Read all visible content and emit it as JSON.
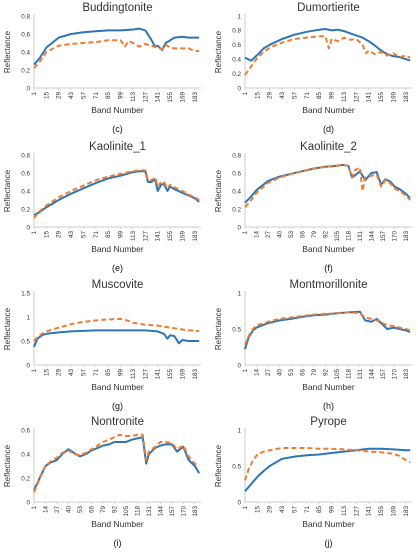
{
  "style": {
    "measured_color": "#2e75b6",
    "reference_color": "#ed7d31",
    "reference_dash": true
  },
  "chart_data": [
    {
      "type": "line",
      "title": "Buddingtonite",
      "caption": "(c)",
      "xlabel": "Band Number",
      "ylabel": "Reflectance",
      "xlim": [
        1,
        190
      ],
      "ylim": [
        0,
        0.8
      ],
      "yticks": [
        0,
        0.2,
        0.4,
        0.6,
        0.8
      ],
      "xticks": [
        1,
        15,
        29,
        43,
        57,
        71,
        85,
        99,
        113,
        127,
        141,
        155,
        169,
        183
      ],
      "series": [
        {
          "role": "measured",
          "x": [
            1,
            8,
            15,
            29,
            43,
            57,
            71,
            85,
            99,
            113,
            120,
            127,
            133,
            138,
            141,
            146,
            150,
            155,
            160,
            169,
            176,
            183,
            188
          ],
          "y": [
            0.26,
            0.34,
            0.45,
            0.56,
            0.6,
            0.62,
            0.63,
            0.64,
            0.64,
            0.65,
            0.66,
            0.64,
            0.55,
            0.46,
            0.47,
            0.42,
            0.5,
            0.53,
            0.56,
            0.57,
            0.56,
            0.56,
            0.56
          ]
        },
        {
          "role": "reference",
          "x": [
            1,
            8,
            15,
            29,
            43,
            57,
            71,
            85,
            99,
            104,
            108,
            113,
            120,
            127,
            133,
            141,
            146,
            150,
            155,
            160,
            169,
            176,
            183,
            188
          ],
          "y": [
            0.22,
            0.3,
            0.4,
            0.47,
            0.49,
            0.5,
            0.51,
            0.53,
            0.53,
            0.46,
            0.52,
            0.5,
            0.46,
            0.49,
            0.47,
            0.45,
            0.43,
            0.48,
            0.45,
            0.44,
            0.44,
            0.44,
            0.41,
            0.41
          ]
        }
      ]
    },
    {
      "type": "line",
      "title": "Dumortierite",
      "caption": "(d)",
      "xlabel": "Band Number",
      "ylabel": "Reflectance",
      "xlim": [
        1,
        190
      ],
      "ylim": [
        0,
        1
      ],
      "yticks": [
        0,
        0.2,
        0.4,
        0.6,
        0.8,
        1
      ],
      "xticks": [
        1,
        15,
        29,
        43,
        57,
        71,
        85,
        99,
        113,
        127,
        141,
        155,
        169,
        183
      ],
      "series": [
        {
          "role": "measured",
          "x": [
            1,
            8,
            15,
            22,
            29,
            43,
            57,
            71,
            85,
            92,
            99,
            106,
            113,
            120,
            127,
            134,
            141,
            148,
            155,
            162,
            169,
            176,
            183,
            188
          ],
          "y": [
            0.42,
            0.38,
            0.46,
            0.55,
            0.6,
            0.68,
            0.74,
            0.78,
            0.81,
            0.82,
            0.8,
            0.81,
            0.79,
            0.76,
            0.73,
            0.7,
            0.65,
            0.59,
            0.52,
            0.47,
            0.44,
            0.43,
            0.4,
            0.38
          ]
        },
        {
          "role": "reference",
          "x": [
            1,
            8,
            15,
            22,
            29,
            43,
            57,
            71,
            85,
            92,
            96,
            99,
            106,
            113,
            120,
            127,
            134,
            138,
            141,
            148,
            155,
            162,
            169,
            176,
            183,
            188
          ],
          "y": [
            0.18,
            0.3,
            0.42,
            0.5,
            0.56,
            0.63,
            0.68,
            0.7,
            0.72,
            0.72,
            0.55,
            0.68,
            0.65,
            0.7,
            0.67,
            0.68,
            0.6,
            0.48,
            0.52,
            0.47,
            0.5,
            0.45,
            0.48,
            0.43,
            0.45,
            0.42
          ]
        }
      ]
    },
    {
      "type": "line",
      "title": "Kaolinite_1",
      "caption": "(e)",
      "xlabel": "Band Number",
      "ylabel": "Reflectance",
      "xlim": [
        1,
        190
      ],
      "ylim": [
        0,
        0.8
      ],
      "yticks": [
        0,
        0.2,
        0.4,
        0.6,
        0.8
      ],
      "xticks": [
        1,
        15,
        29,
        43,
        57,
        71,
        85,
        99,
        113,
        127,
        141,
        155,
        169,
        183
      ],
      "series": [
        {
          "role": "measured",
          "x": [
            1,
            8,
            15,
            29,
            43,
            57,
            71,
            85,
            99,
            113,
            120,
            127,
            130,
            134,
            138,
            141,
            145,
            148,
            152,
            155,
            160,
            169,
            176,
            183,
            188
          ],
          "y": [
            0.13,
            0.17,
            0.22,
            0.3,
            0.37,
            0.43,
            0.49,
            0.54,
            0.57,
            0.61,
            0.62,
            0.62,
            0.5,
            0.5,
            0.53,
            0.4,
            0.47,
            0.48,
            0.4,
            0.45,
            0.42,
            0.38,
            0.35,
            0.32,
            0.28
          ]
        },
        {
          "role": "reference",
          "x": [
            1,
            8,
            15,
            29,
            43,
            57,
            71,
            85,
            99,
            113,
            120,
            127,
            130,
            134,
            138,
            141,
            145,
            148,
            152,
            155,
            160,
            169,
            176,
            183,
            188
          ],
          "y": [
            0.1,
            0.18,
            0.24,
            0.33,
            0.4,
            0.46,
            0.52,
            0.56,
            0.59,
            0.62,
            0.63,
            0.63,
            0.52,
            0.52,
            0.55,
            0.45,
            0.5,
            0.5,
            0.43,
            0.47,
            0.44,
            0.4,
            0.36,
            0.33,
            0.3
          ]
        }
      ]
    },
    {
      "type": "line",
      "title": "Kaolinite_2",
      "caption": "(f)",
      "xlabel": "Band Number",
      "ylabel": "Reflectance",
      "xlim": [
        1,
        190
      ],
      "ylim": [
        0,
        0.8
      ],
      "yticks": [
        0,
        0.2,
        0.4,
        0.6,
        0.8
      ],
      "xticks": [
        1,
        14,
        27,
        40,
        53,
        66,
        79,
        92,
        105,
        118,
        131,
        144,
        157,
        170,
        183
      ],
      "series": [
        {
          "role": "measured",
          "x": [
            1,
            8,
            14,
            27,
            40,
            53,
            66,
            79,
            92,
            105,
            112,
            118,
            122,
            125,
            131,
            137,
            144,
            150,
            155,
            160,
            166,
            170,
            176,
            183,
            188
          ],
          "y": [
            0.27,
            0.34,
            0.41,
            0.51,
            0.56,
            0.59,
            0.62,
            0.65,
            0.67,
            0.68,
            0.69,
            0.68,
            0.55,
            0.57,
            0.62,
            0.52,
            0.6,
            0.61,
            0.47,
            0.53,
            0.5,
            0.45,
            0.42,
            0.37,
            0.32
          ]
        },
        {
          "role": "reference",
          "x": [
            1,
            8,
            14,
            27,
            40,
            53,
            66,
            79,
            92,
            105,
            112,
            118,
            122,
            125,
            131,
            134,
            137,
            144,
            150,
            155,
            160,
            166,
            170,
            176,
            183,
            188
          ],
          "y": [
            0.22,
            0.3,
            0.38,
            0.49,
            0.55,
            0.59,
            0.62,
            0.65,
            0.67,
            0.68,
            0.69,
            0.68,
            0.55,
            0.63,
            0.66,
            0.4,
            0.55,
            0.57,
            0.58,
            0.45,
            0.52,
            0.48,
            0.43,
            0.4,
            0.35,
            0.3
          ]
        }
      ]
    },
    {
      "type": "line",
      "title": "Muscovite",
      "caption": "(g)",
      "xlabel": "Band Number",
      "ylabel": "Reflectance",
      "xlim": [
        1,
        190
      ],
      "ylim": [
        0,
        1.5
      ],
      "yticks": [
        0,
        0.5,
        1,
        1.5
      ],
      "xticks": [
        1,
        15,
        29,
        43,
        57,
        71,
        85,
        99,
        113,
        127,
        141,
        155,
        169,
        183
      ],
      "series": [
        {
          "role": "measured",
          "x": [
            1,
            5,
            10,
            15,
            29,
            43,
            57,
            71,
            85,
            99,
            113,
            127,
            141,
            148,
            152,
            155,
            160,
            165,
            169,
            176,
            183,
            188
          ],
          "y": [
            0.38,
            0.55,
            0.62,
            0.65,
            0.68,
            0.7,
            0.71,
            0.72,
            0.72,
            0.72,
            0.72,
            0.72,
            0.7,
            0.65,
            0.55,
            0.62,
            0.6,
            0.45,
            0.52,
            0.5,
            0.5,
            0.5
          ]
        },
        {
          "role": "reference",
          "x": [
            1,
            5,
            10,
            15,
            29,
            43,
            57,
            71,
            85,
            99,
            108,
            113,
            127,
            141,
            155,
            169,
            176,
            183,
            188
          ],
          "y": [
            0.5,
            0.58,
            0.65,
            0.7,
            0.78,
            0.85,
            0.9,
            0.93,
            0.95,
            0.96,
            0.92,
            0.88,
            0.84,
            0.82,
            0.78,
            0.74,
            0.72,
            0.72,
            0.7
          ]
        }
      ]
    },
    {
      "type": "line",
      "title": "Montmorillonite",
      "caption": "(h)",
      "xlabel": "Band Number",
      "ylabel": "Reflectance",
      "xlim": [
        1,
        190
      ],
      "ylim": [
        0,
        1
      ],
      "yticks": [
        0,
        0.5,
        1
      ],
      "xticks": [
        1,
        14,
        27,
        40,
        53,
        66,
        79,
        92,
        105,
        118,
        131,
        144,
        157,
        170,
        183
      ],
      "series": [
        {
          "role": "measured",
          "x": [
            1,
            5,
            10,
            14,
            27,
            40,
            53,
            66,
            79,
            92,
            105,
            118,
            131,
            137,
            144,
            150,
            157,
            162,
            170,
            176,
            183,
            188
          ],
          "y": [
            0.22,
            0.38,
            0.48,
            0.52,
            0.58,
            0.62,
            0.64,
            0.67,
            0.69,
            0.7,
            0.72,
            0.73,
            0.74,
            0.62,
            0.6,
            0.64,
            0.56,
            0.5,
            0.52,
            0.5,
            0.48,
            0.46
          ]
        },
        {
          "role": "reference",
          "x": [
            1,
            5,
            10,
            14,
            27,
            40,
            53,
            66,
            79,
            92,
            105,
            118,
            131,
            137,
            144,
            150,
            157,
            162,
            170,
            176,
            183,
            188
          ],
          "y": [
            0.28,
            0.4,
            0.5,
            0.55,
            0.6,
            0.64,
            0.66,
            0.68,
            0.7,
            0.71,
            0.72,
            0.73,
            0.72,
            0.66,
            0.64,
            0.62,
            0.58,
            0.55,
            0.54,
            0.52,
            0.5,
            0.48
          ]
        }
      ]
    },
    {
      "type": "line",
      "title": "Nontronite",
      "caption": "(i)",
      "xlabel": "Band Number",
      "ylabel": "Reflectance",
      "xlim": [
        1,
        190
      ],
      "ylim": [
        0,
        0.6
      ],
      "yticks": [
        0,
        0.2,
        0.4,
        0.6
      ],
      "xticks": [
        1,
        14,
        27,
        40,
        53,
        66,
        79,
        92,
        105,
        118,
        131,
        144,
        157,
        170,
        183
      ],
      "series": [
        {
          "role": "measured",
          "x": [
            1,
            5,
            10,
            14,
            20,
            27,
            33,
            40,
            46,
            53,
            60,
            66,
            73,
            79,
            86,
            92,
            98,
            105,
            112,
            118,
            124,
            128,
            131,
            138,
            144,
            150,
            157,
            163,
            170,
            176,
            183,
            188
          ],
          "y": [
            0.1,
            0.16,
            0.24,
            0.3,
            0.33,
            0.35,
            0.4,
            0.44,
            0.41,
            0.38,
            0.4,
            0.43,
            0.45,
            0.47,
            0.48,
            0.5,
            0.5,
            0.5,
            0.52,
            0.53,
            0.54,
            0.32,
            0.4,
            0.45,
            0.47,
            0.48,
            0.48,
            0.42,
            0.46,
            0.35,
            0.3,
            0.24
          ]
        },
        {
          "role": "reference",
          "x": [
            1,
            5,
            10,
            14,
            20,
            27,
            33,
            40,
            46,
            53,
            60,
            66,
            73,
            79,
            86,
            92,
            98,
            105,
            112,
            118,
            124,
            128,
            131,
            138,
            144,
            150,
            157,
            163,
            170,
            176,
            183,
            188
          ],
          "y": [
            0.08,
            0.15,
            0.25,
            0.3,
            0.34,
            0.37,
            0.41,
            0.43,
            0.4,
            0.39,
            0.41,
            0.44,
            0.47,
            0.5,
            0.52,
            0.54,
            0.56,
            0.55,
            0.55,
            0.56,
            0.56,
            0.35,
            0.42,
            0.46,
            0.5,
            0.5,
            0.49,
            0.44,
            0.47,
            0.38,
            0.32,
            0.3
          ]
        }
      ]
    },
    {
      "type": "line",
      "title": "Pyrope",
      "caption": "(j)",
      "xlabel": "Band Number",
      "ylabel": "Reflectance",
      "xlim": [
        1,
        190
      ],
      "ylim": [
        0,
        1
      ],
      "yticks": [
        0,
        0.5,
        1
      ],
      "xticks": [
        1,
        15,
        29,
        43,
        57,
        71,
        85,
        99,
        113,
        127,
        141,
        155,
        169,
        183
      ],
      "series": [
        {
          "role": "measured",
          "x": [
            1,
            8,
            15,
            22,
            29,
            36,
            43,
            57,
            71,
            85,
            99,
            113,
            127,
            141,
            155,
            169,
            183,
            188
          ],
          "y": [
            0.15,
            0.25,
            0.35,
            0.43,
            0.5,
            0.55,
            0.6,
            0.63,
            0.65,
            0.66,
            0.68,
            0.7,
            0.72,
            0.74,
            0.74,
            0.73,
            0.72,
            0.72
          ]
        },
        {
          "role": "reference",
          "x": [
            1,
            5,
            10,
            15,
            22,
            29,
            43,
            57,
            71,
            85,
            99,
            113,
            127,
            141,
            155,
            169,
            176,
            183,
            188
          ],
          "y": [
            0.3,
            0.45,
            0.58,
            0.66,
            0.7,
            0.72,
            0.75,
            0.75,
            0.75,
            0.74,
            0.74,
            0.73,
            0.72,
            0.7,
            0.69,
            0.67,
            0.64,
            0.58,
            0.55
          ]
        }
      ]
    }
  ]
}
